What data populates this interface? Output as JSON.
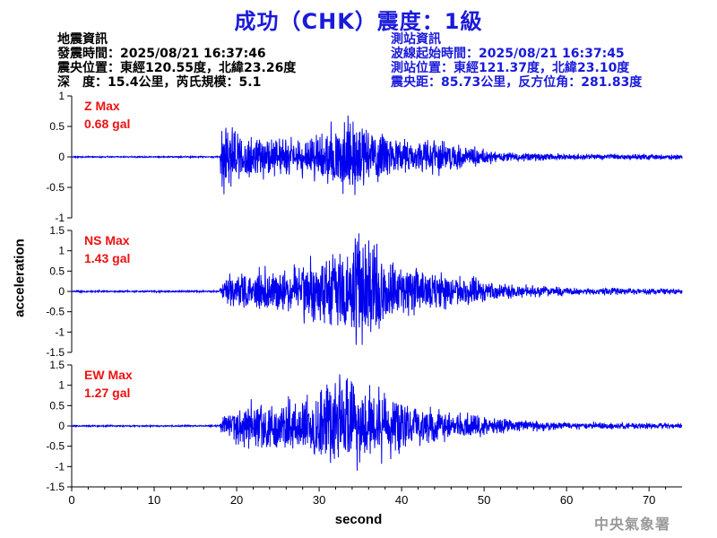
{
  "title": "成功（CHK）震度：1級",
  "quake_info": {
    "heading": "地震資訊",
    "time": "發震時間：2025/08/21 16:37:46",
    "epicenter": "震央位置：東經120.55度，北緯23.26度",
    "depth_mag": "深　度：15.4公里，芮氏規模：5.1"
  },
  "station_info": {
    "heading": "測站資訊",
    "wave_start": "波線起始時間：2025/08/21 16:37:45",
    "location": "測站位置：東經121.37度，北緯23.10度",
    "distance": "震央距：85.73公里，反方位角：281.83度"
  },
  "watermark": "中央氣象署",
  "colors": {
    "title": "#1a1adb",
    "trace": "#0000ee",
    "max_label": "#ee1111",
    "station_text": "#1a1adb"
  },
  "chart_data": {
    "type": "line",
    "xlabel": "second",
    "ylabel": "acceleration",
    "xlim": [
      0,
      74
    ],
    "xticks": [
      0,
      10,
      20,
      30,
      40,
      50,
      60,
      70
    ],
    "onset_s": 18.0,
    "grid": false,
    "panels": [
      {
        "component": "Z",
        "label_name": "Z Max",
        "label_value": "0.68 gal",
        "ylim": [
          -1,
          1
        ],
        "yticks": [
          -1,
          -0.5,
          0,
          0.5,
          1
        ],
        "ytick_labels": [
          "-1",
          "-0.5",
          "0",
          "0.5",
          "1"
        ],
        "peak_gal": 0.68,
        "peak_time_s": 33.5,
        "envelope": [
          [
            0,
            0.01
          ],
          [
            17.9,
            0.01
          ],
          [
            18.2,
            0.5
          ],
          [
            22,
            0.35
          ],
          [
            27,
            0.28
          ],
          [
            31,
            0.45
          ],
          [
            34,
            0.6
          ],
          [
            40,
            0.3
          ],
          [
            46,
            0.22
          ],
          [
            52,
            0.08
          ],
          [
            60,
            0.05
          ],
          [
            74,
            0.04
          ]
        ]
      },
      {
        "component": "NS",
        "label_name": "NS Max",
        "label_value": "1.43 gal",
        "ylim": [
          -1.5,
          1.5
        ],
        "yticks": [
          -1.5,
          -1,
          -0.5,
          0,
          0.5,
          1,
          1.5
        ],
        "ytick_labels": [
          "-1.5",
          "-1",
          "-0.5",
          "0",
          "0.5",
          "1",
          "1.5"
        ],
        "peak_gal": 1.43,
        "peak_time_s": 34.8,
        "envelope": [
          [
            0,
            0.02
          ],
          [
            17.9,
            0.02
          ],
          [
            18.3,
            0.35
          ],
          [
            23,
            0.5
          ],
          [
            28,
            0.6
          ],
          [
            32,
            0.9
          ],
          [
            35,
            1.4
          ],
          [
            40,
            0.6
          ],
          [
            46,
            0.4
          ],
          [
            52,
            0.18
          ],
          [
            60,
            0.1
          ],
          [
            74,
            0.06
          ]
        ]
      },
      {
        "component": "EW",
        "label_name": "EW Max",
        "label_value": "1.27 gal",
        "ylim": [
          -1.5,
          1.5
        ],
        "yticks": [
          -1.5,
          -1,
          -0.5,
          0,
          0.5,
          1,
          1.5
        ],
        "ytick_labels": [
          "-1.5",
          "-1",
          "-0.5",
          "0",
          "0.5",
          "1",
          "1.5"
        ],
        "peak_gal": 1.27,
        "peak_time_s": 32.5,
        "envelope": [
          [
            0,
            0.02
          ],
          [
            17.9,
            0.02
          ],
          [
            18.3,
            0.3
          ],
          [
            22,
            0.75
          ],
          [
            27,
            0.65
          ],
          [
            32,
            1.25
          ],
          [
            36,
            1.1
          ],
          [
            40,
            0.65
          ],
          [
            46,
            0.4
          ],
          [
            52,
            0.2
          ],
          [
            60,
            0.1
          ],
          [
            74,
            0.07
          ]
        ]
      }
    ]
  }
}
